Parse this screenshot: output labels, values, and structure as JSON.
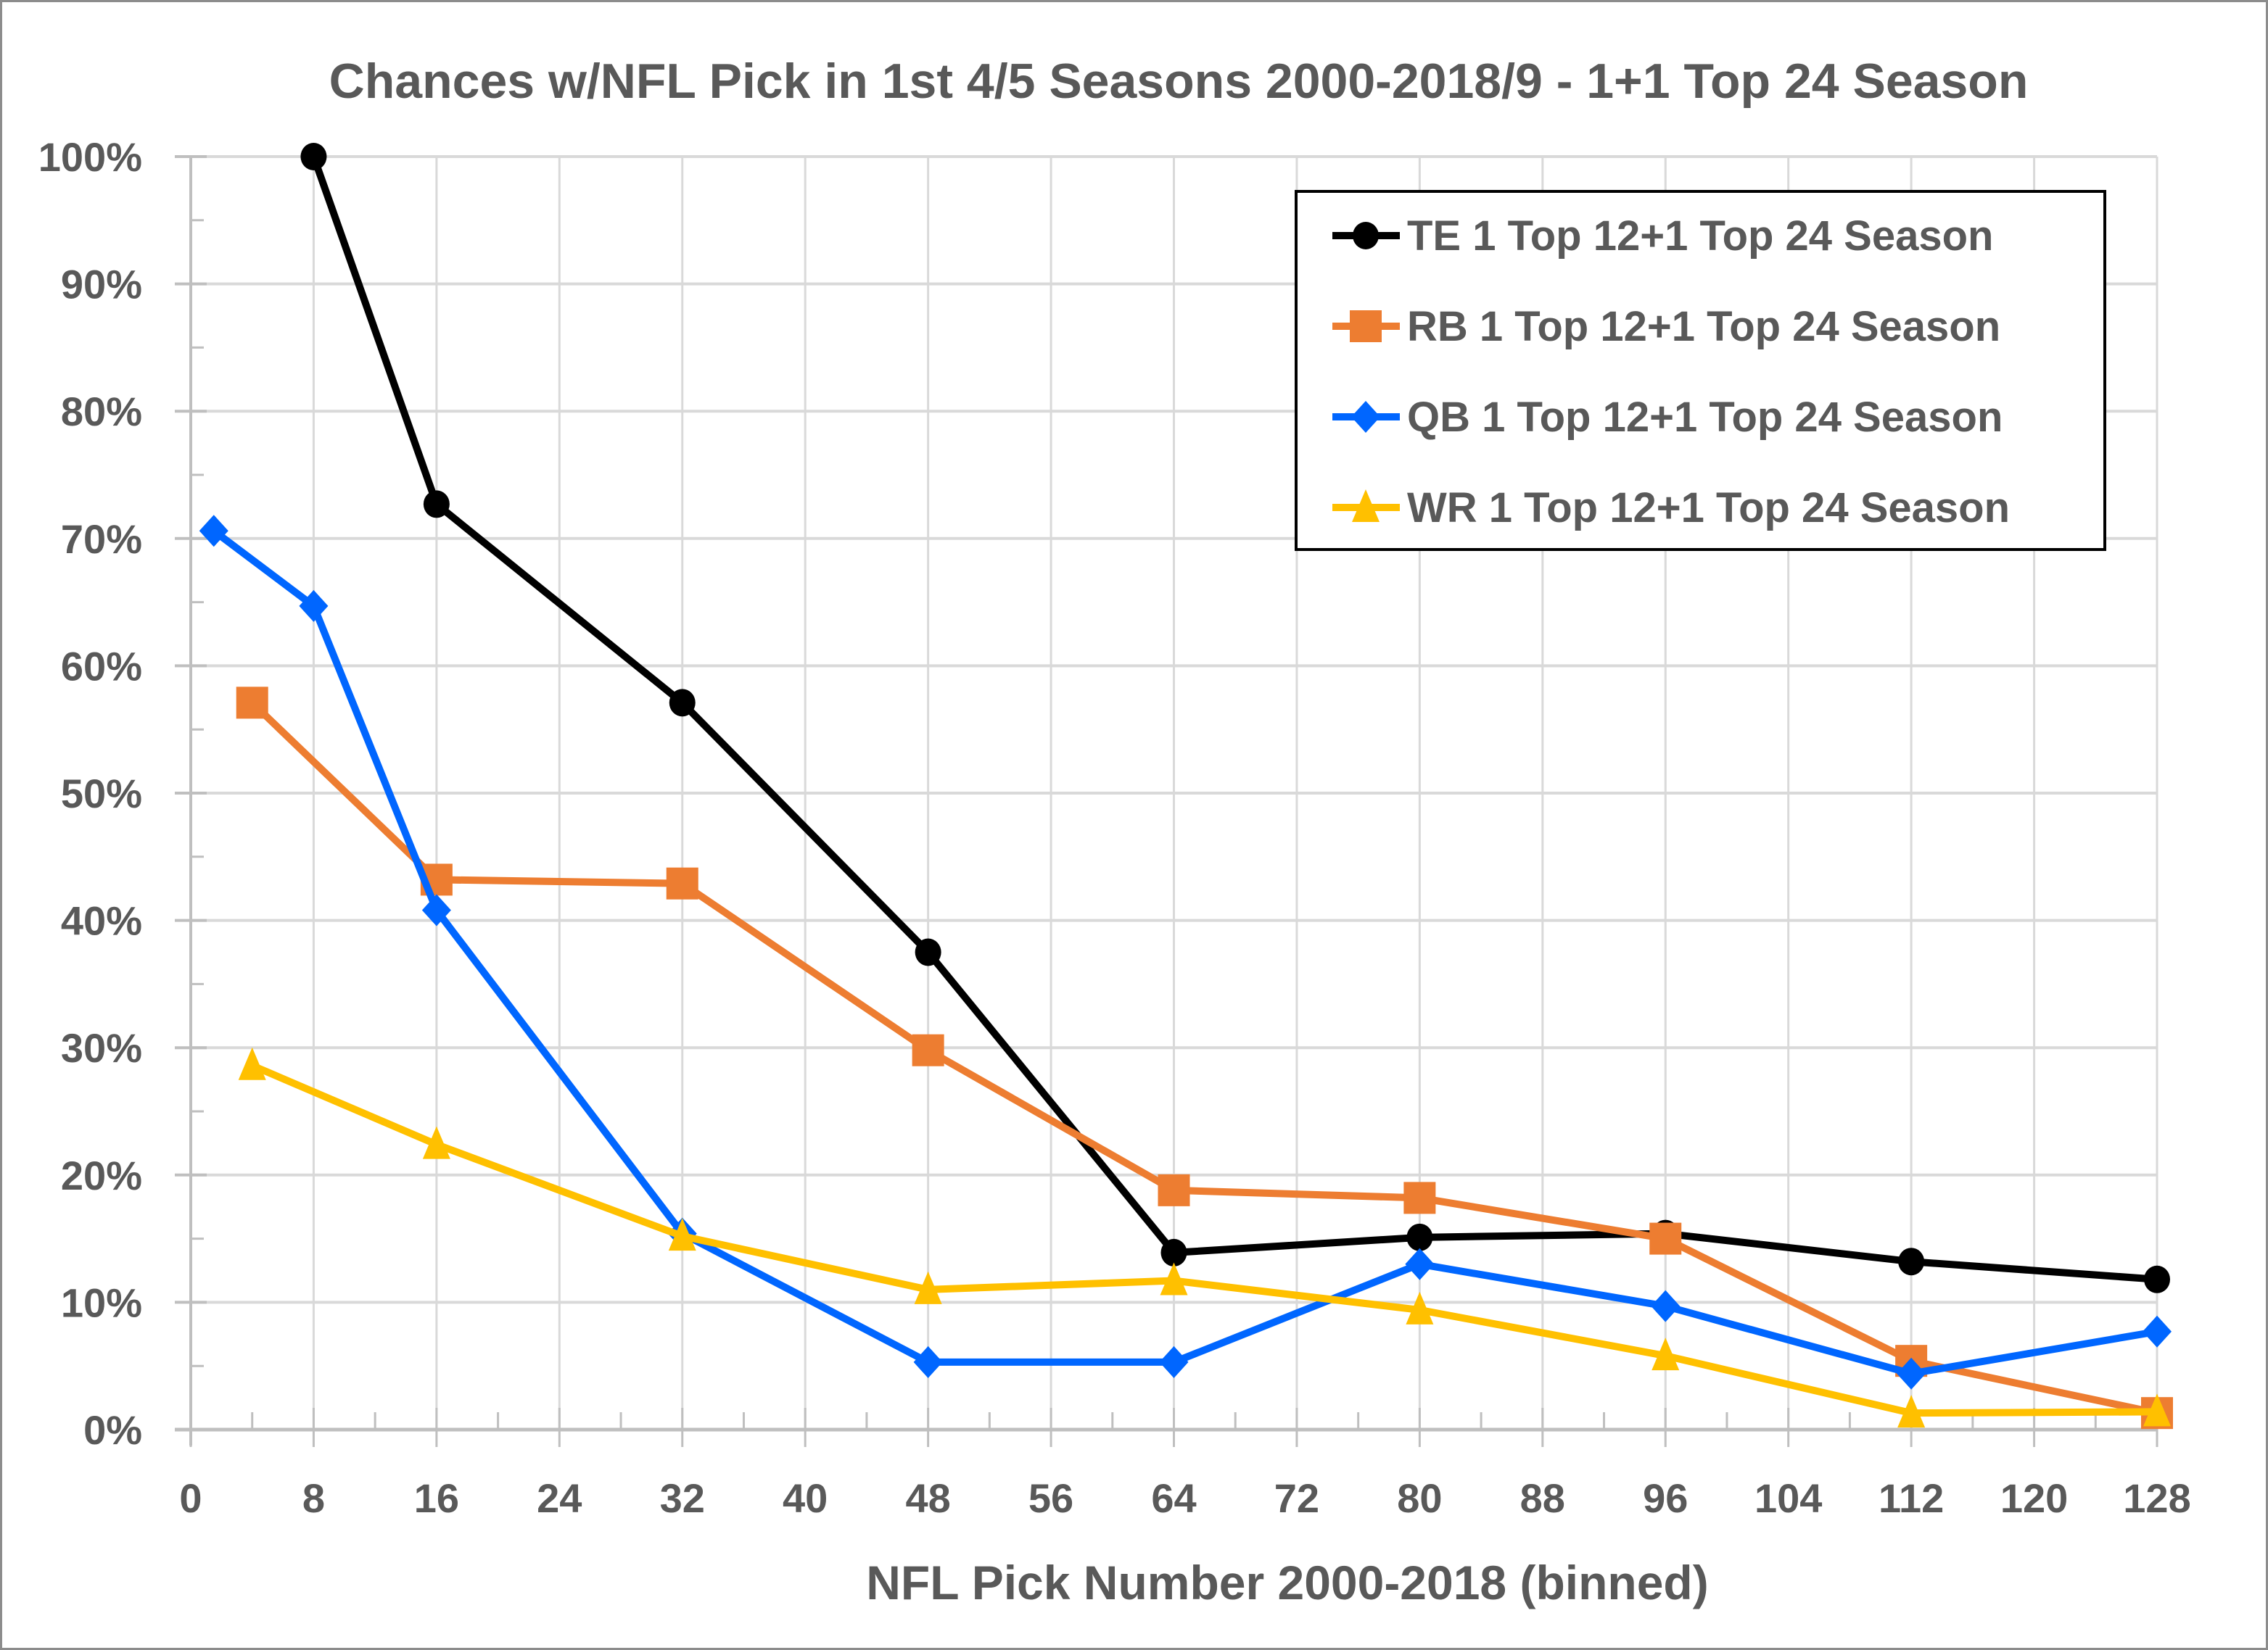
{
  "chart_data": {
    "type": "line",
    "title": "Chances w/NFL Pick in 1st 4/5 Seasons 2000-2018/9 - 1+1 Top 24 Season",
    "xlabel": "NFL Pick Number 2000-2018 (binned)",
    "ylabel": "",
    "xlim": [
      0,
      128
    ],
    "ylim": [
      0,
      100
    ],
    "x_ticks": [
      0,
      8,
      16,
      24,
      32,
      40,
      48,
      56,
      64,
      72,
      80,
      88,
      96,
      104,
      112,
      120,
      128
    ],
    "x_tick_labels": [
      "0",
      "8",
      "16",
      "24",
      "32",
      "40",
      "48",
      "56",
      "64",
      "72",
      "80",
      "88",
      "96",
      "104",
      "112",
      "120",
      "128"
    ],
    "y_ticks": [
      0,
      10,
      20,
      30,
      40,
      50,
      60,
      70,
      80,
      90,
      100
    ],
    "y_tick_labels": [
      "0%",
      "10%",
      "20%",
      "30%",
      "40%",
      "50%",
      "60%",
      "70%",
      "80%",
      "90%",
      "100%"
    ],
    "grid": true,
    "legend_position": "top-right",
    "series": [
      {
        "name": "TE 1 Top 12+1 Top 24 Season",
        "color": "#000000",
        "marker": "circle",
        "x": [
          8,
          16,
          32,
          48,
          64,
          80,
          96,
          112,
          128
        ],
        "values": [
          100,
          72.7,
          57.1,
          37.5,
          13.9,
          15.1,
          15.4,
          13.2,
          11.8
        ]
      },
      {
        "name": "RB 1 Top 12+1 Top 24 Season",
        "color": "#ED7D31",
        "marker": "square",
        "x": [
          4,
          16,
          32,
          48,
          64,
          80,
          96,
          112,
          128
        ],
        "values": [
          57.1,
          43.2,
          42.9,
          29.8,
          18.8,
          18.2,
          15.0,
          5.4,
          1.3
        ]
      },
      {
        "name": "QB 1 Top 12+1 Top 24 Season",
        "color": "#0066FF",
        "marker": "diamond",
        "x": [
          1.5,
          8,
          16,
          32,
          48,
          64,
          80,
          96,
          112,
          128
        ],
        "values": [
          70.6,
          64.7,
          40.8,
          15.4,
          5.3,
          5.3,
          13.0,
          9.7,
          4.4,
          7.7
        ]
      },
      {
        "name": "WR 1 Top 12+1 Top 24 Season",
        "color": "#FFC000",
        "marker": "triangle",
        "x": [
          4,
          16,
          32,
          48,
          64,
          80,
          96,
          112,
          128
        ],
        "values": [
          28.6,
          22.4,
          15.2,
          11.0,
          11.7,
          9.4,
          5.8,
          1.3,
          1.4
        ]
      }
    ]
  }
}
